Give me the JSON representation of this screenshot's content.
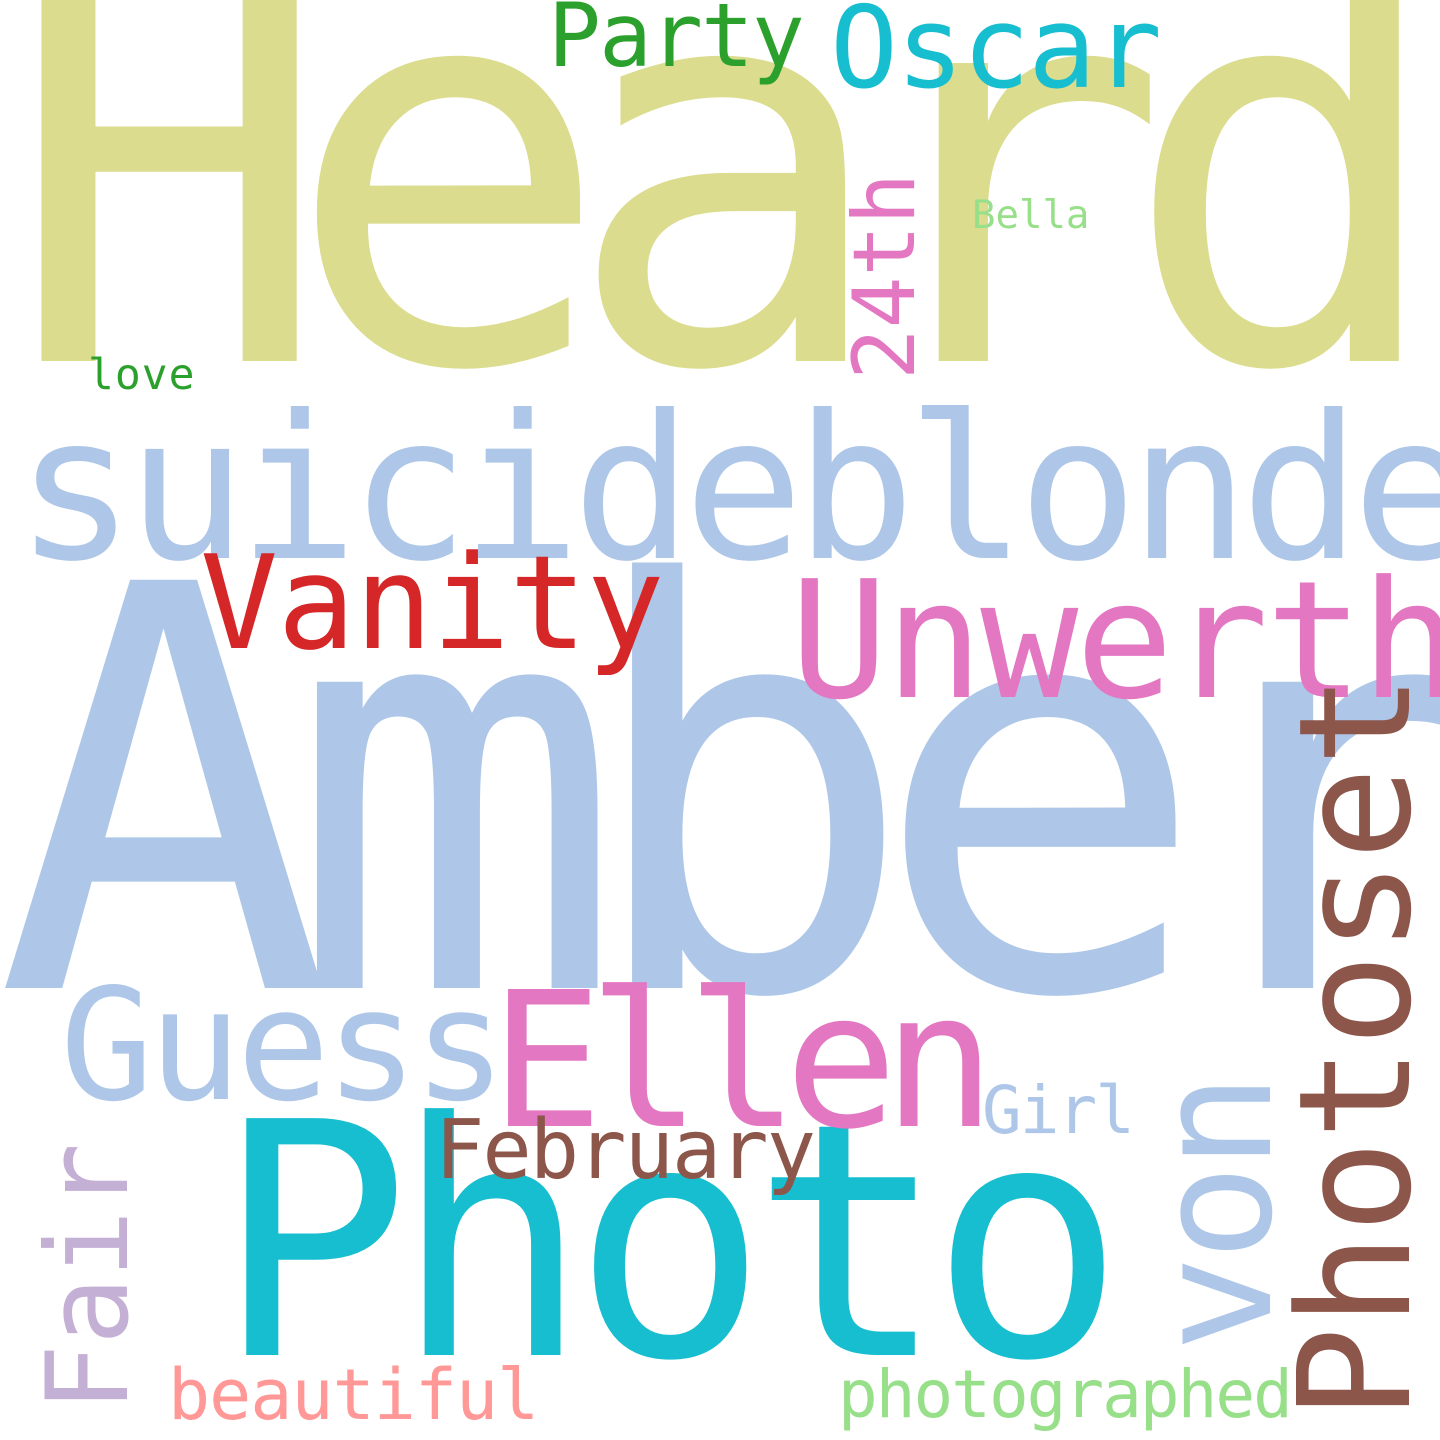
{
  "words": {
    "heard": {
      "text": "Heard",
      "color": "#dbdc8d"
    },
    "amber": {
      "text": "Amber",
      "color": "#aec7e8"
    },
    "suicideblonde": {
      "text": "suicideblonde",
      "color": "#aec7e8"
    },
    "photo": {
      "text": "Photo",
      "color": "#17becf"
    },
    "unwerth": {
      "text": "Unwerth",
      "color": "#e377c2"
    },
    "vanity": {
      "text": "Vanity",
      "color": "#d62728"
    },
    "ellen": {
      "text": "Ellen",
      "color": "#e377c2"
    },
    "guess": {
      "text": "Guess",
      "color": "#aec7e8"
    },
    "photoset": {
      "text": "Photoset",
      "color": "#8c564b"
    },
    "von": {
      "text": "von",
      "color": "#aec7e8"
    },
    "oscar": {
      "text": "Oscar",
      "color": "#17becf"
    },
    "party": {
      "text": "Party",
      "color": "#2ca02c"
    },
    "fair": {
      "text": "Fair",
      "color": "#c5b0d5"
    },
    "february": {
      "text": "February",
      "color": "#8c564b"
    },
    "24th": {
      "text": "24th",
      "color": "#e377c2"
    },
    "beautiful": {
      "text": "beautiful",
      "color": "#ff9896"
    },
    "photographed": {
      "text": "photographed",
      "color": "#98df8a"
    },
    "girl": {
      "text": "Girl",
      "color": "#aec7e8"
    },
    "bella": {
      "text": "Bella",
      "color": "#98df8a"
    },
    "love": {
      "text": "love",
      "color": "#2ca02c"
    }
  }
}
